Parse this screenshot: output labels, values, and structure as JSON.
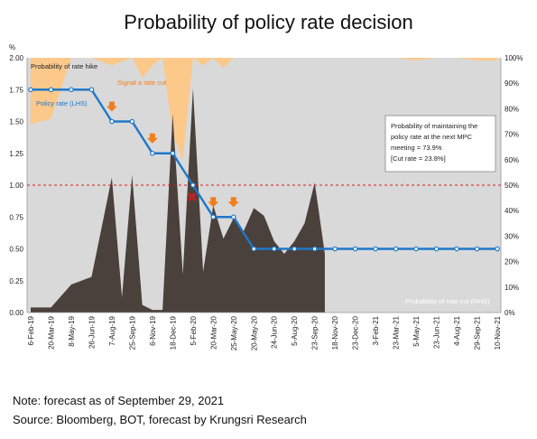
{
  "title": "Probability of policy rate decision",
  "notes": {
    "forecast": "Note: forecast as of September 29, 2021",
    "source": "Source: Bloomberg, BOT, forecast by Krungsri Research"
  },
  "colors": {
    "background_area": "#d9d9d9",
    "hike": "#fcc98b",
    "cut": "#4a403c",
    "policy_line": "#1f78c8",
    "signal_arrow": "#f07e1a",
    "cross": "#c0211f",
    "threshold": "#d32020"
  },
  "chart_data": {
    "type": "area",
    "title": "Probability of policy rate decision",
    "left_axis": {
      "unit": "%",
      "ylim": [
        0,
        2.0
      ],
      "ticks": [
        "0.00",
        "0.25",
        "0.50",
        "0.75",
        "1.00",
        "1.25",
        "1.50",
        "1.75",
        "2.00"
      ]
    },
    "right_axis": {
      "ylim": [
        0,
        100
      ],
      "ticks": [
        "0%",
        "10%",
        "20%",
        "30%",
        "40%",
        "50%",
        "60%",
        "70%",
        "80%",
        "90%",
        "100%"
      ]
    },
    "x_tick_labels": [
      "6-Feb-19",
      "20-Mar-19",
      "8-May-19",
      "26-Jun-19",
      "7-Aug-19",
      "25-Sep-19",
      "6-Nov-19",
      "18-Dec-19",
      "5-Feb-20",
      "20-Mar-20",
      "25-May-20",
      "20-May-20",
      "24-Jun-20",
      "5-Aug-20",
      "23-Sep-20",
      "18-Nov-20",
      "23-Dec-20",
      "3-Feb-21",
      "23-Mar-21",
      "5-May-21",
      "23-Jun-21",
      "4-Aug-21",
      "29-Sep-21",
      "10-Nov-21"
    ],
    "series": [
      {
        "name": "Probability of rate hike",
        "axis": "right",
        "points": [
          [
            0,
            26
          ],
          [
            1,
            24
          ],
          [
            2,
            0
          ],
          [
            3,
            0
          ],
          [
            4,
            3
          ],
          [
            5,
            0
          ],
          [
            5.5,
            8
          ],
          [
            6,
            3
          ],
          [
            6.5,
            0
          ],
          [
            7,
            30
          ],
          [
            7.5,
            40
          ],
          [
            8,
            0
          ],
          [
            8.5,
            3
          ],
          [
            9,
            0
          ],
          [
            9.5,
            4
          ],
          [
            10,
            0
          ],
          [
            11,
            0
          ],
          [
            12,
            0
          ],
          [
            13,
            0
          ],
          [
            14,
            0
          ],
          [
            15,
            0
          ],
          [
            16,
            0
          ],
          [
            17,
            0
          ],
          [
            18,
            0
          ],
          [
            19,
            1
          ],
          [
            20,
            0
          ],
          [
            21,
            0
          ],
          [
            22,
            1
          ],
          [
            23,
            1
          ]
        ]
      },
      {
        "name": "Probability of rate cut (RHS)",
        "axis": "right",
        "points": [
          [
            0,
            2
          ],
          [
            1,
            2
          ],
          [
            2,
            11
          ],
          [
            3,
            14
          ],
          [
            4,
            53
          ],
          [
            4.5,
            6
          ],
          [
            5,
            54
          ],
          [
            5.5,
            3
          ],
          [
            6,
            1
          ],
          [
            6.5,
            1
          ],
          [
            7,
            78
          ],
          [
            7.5,
            15
          ],
          [
            8,
            88
          ],
          [
            8.5,
            16
          ],
          [
            9,
            42
          ],
          [
            9.5,
            29
          ],
          [
            10,
            37
          ],
          [
            10.5,
            32
          ],
          [
            11,
            41
          ],
          [
            11.5,
            38
          ],
          [
            12,
            28
          ],
          [
            12.5,
            23
          ],
          [
            13,
            28
          ],
          [
            13.5,
            35
          ],
          [
            14,
            51
          ],
          [
            14.5,
            23
          ]
        ]
      },
      {
        "name": "Policy rate (LHS)",
        "axis": "left",
        "values": [
          1.75,
          1.75,
          1.75,
          1.75,
          1.5,
          1.5,
          1.25,
          1.25,
          1.0,
          0.75,
          0.75,
          0.5,
          0.5,
          0.5,
          0.5,
          0.5,
          0.5,
          0.5,
          0.5,
          0.5,
          0.5,
          0.5,
          0.5,
          0.5
        ]
      }
    ],
    "threshold": {
      "axis": "left",
      "value": 1.0,
      "style": "dashed"
    },
    "signal_label": "Signal a rate cut",
    "signal_indices": [
      4,
      6,
      9,
      10
    ],
    "cross_index": 8,
    "annotation_box": "Probability of maintaining the policy rate at the next MPC meeting = 73.9% [Cut rate = 23.8%]",
    "grid": false
  }
}
